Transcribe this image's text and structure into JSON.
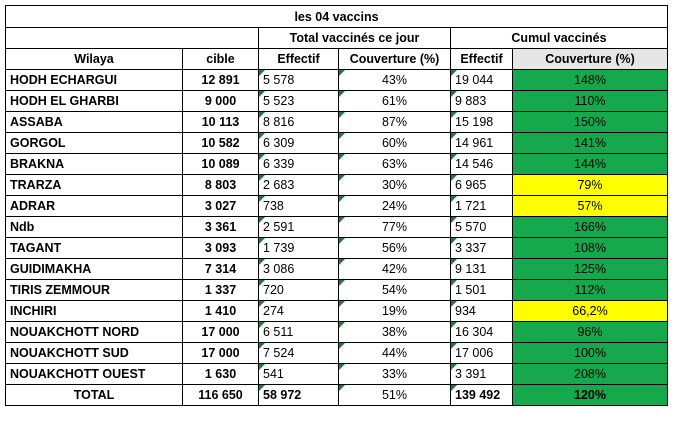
{
  "title": "les 04 vaccins",
  "groups": {
    "jour": "Total vaccinés ce jour",
    "cumul": "Cumul vaccinés"
  },
  "headers": {
    "wilaya": "Wilaya",
    "cible": "cible",
    "effectif_jour": "Effectif",
    "couverture_jour": "Couverture (%)",
    "effectif_cumul": "Effectif",
    "couverture_cumul": "Couverture (%)"
  },
  "rows": [
    {
      "wilaya": "HODH ECHARGUI",
      "cible": "12 891",
      "eff_jour": "5 578",
      "cov_jour": "43%",
      "eff_cumul": "19 044",
      "cov_cumul": "148%",
      "status": "green"
    },
    {
      "wilaya": "HODH EL GHARBI",
      "cible": "9 000",
      "eff_jour": "5 523",
      "cov_jour": "61%",
      "eff_cumul": "9 883",
      "cov_cumul": "110%",
      "status": "green"
    },
    {
      "wilaya": "ASSABA",
      "cible": "10 113",
      "eff_jour": "8 816",
      "cov_jour": "87%",
      "eff_cumul": "15 198",
      "cov_cumul": "150%",
      "status": "green"
    },
    {
      "wilaya": "GORGOL",
      "cible": "10 582",
      "eff_jour": "6 309",
      "cov_jour": "60%",
      "eff_cumul": "14 961",
      "cov_cumul": "141%",
      "status": "green"
    },
    {
      "wilaya": "BRAKNA",
      "cible": "10 089",
      "eff_jour": "6 339",
      "cov_jour": "63%",
      "eff_cumul": "14 546",
      "cov_cumul": "144%",
      "status": "green"
    },
    {
      "wilaya": "TRARZA",
      "cible": "8 803",
      "eff_jour": "2 683",
      "cov_jour": "30%",
      "eff_cumul": "6 965",
      "cov_cumul": "79%",
      "status": "yellow"
    },
    {
      "wilaya": "ADRAR",
      "cible": "3 027",
      "eff_jour": "738",
      "cov_jour": "24%",
      "eff_cumul": "1 721",
      "cov_cumul": "57%",
      "status": "yellow"
    },
    {
      "wilaya": "Ndb",
      "cible": "3 361",
      "eff_jour": "2 591",
      "cov_jour": "77%",
      "eff_cumul": "5 570",
      "cov_cumul": "166%",
      "status": "green"
    },
    {
      "wilaya": "TAGANT",
      "cible": "3 093",
      "eff_jour": "1 739",
      "cov_jour": "56%",
      "eff_cumul": "3 337",
      "cov_cumul": "108%",
      "status": "green"
    },
    {
      "wilaya": "GUIDIMAKHA",
      "cible": "7 314",
      "eff_jour": "3 086",
      "cov_jour": "42%",
      "eff_cumul": "9 131",
      "cov_cumul": "125%",
      "status": "green"
    },
    {
      "wilaya": "TIRIS ZEMMOUR",
      "cible": "1 337",
      "eff_jour": "720",
      "cov_jour": "54%",
      "eff_cumul": "1 501",
      "cov_cumul": "112%",
      "status": "green"
    },
    {
      "wilaya": "INCHIRI",
      "cible": "1 410",
      "eff_jour": "274",
      "cov_jour": "19%",
      "eff_cumul": "934",
      "cov_cumul": "66,2%",
      "status": "yellow"
    },
    {
      "wilaya": "NOUAKCHOTT NORD",
      "cible": "17 000",
      "eff_jour": "6 511",
      "cov_jour": "38%",
      "eff_cumul": "16 304",
      "cov_cumul": "96%",
      "status": "green"
    },
    {
      "wilaya": "NOUAKCHOTT SUD",
      "cible": "17 000",
      "eff_jour": "7 524",
      "cov_jour": "44%",
      "eff_cumul": "17 006",
      "cov_cumul": "100%",
      "status": "green"
    },
    {
      "wilaya": "NOUAKCHOTT OUEST",
      "cible": "1 630",
      "eff_jour": "541",
      "cov_jour": "33%",
      "eff_cumul": "3 391",
      "cov_cumul": "208%",
      "status": "green"
    }
  ],
  "total": {
    "wilaya": "TOTAL",
    "cible": "116 650",
    "eff_jour": "58 972",
    "cov_jour": "51%",
    "eff_cumul": "139 492",
    "cov_cumul": "120%",
    "status": "green"
  },
  "colors": {
    "green": "#16a84c",
    "yellow": "#ffff00",
    "header_grey": "#e6e6e6"
  }
}
